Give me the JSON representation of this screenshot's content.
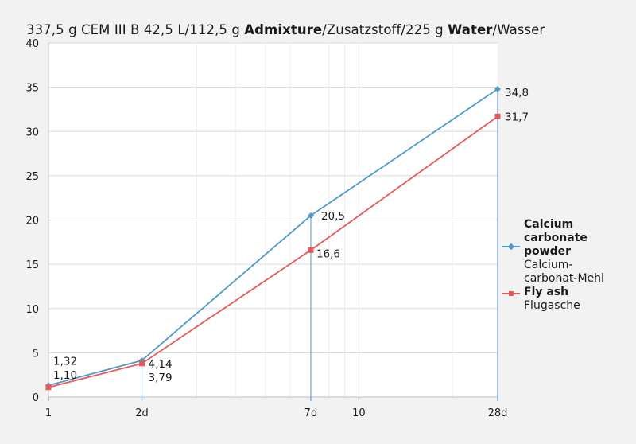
{
  "title": {
    "part1": "337,5 g CEM III B 42,5 L/112,5 g ",
    "bold1": "Admixture",
    "part2": "/Zusatzstoff/225 g ",
    "bold2": "Water",
    "part3": "/Wasser"
  },
  "colors": {
    "background": "#f2f2f2",
    "plot_background": "#ffffff",
    "grid": "#d9d9d9",
    "calcium_carbonate": "#4d9ac8",
    "fly_ash": "#e8575a",
    "drop_lines": "#6fa3cf"
  },
  "chart_data": {
    "type": "line",
    "x_scale": "log",
    "x": [
      1,
      2,
      7,
      28
    ],
    "xlim": [
      1,
      28
    ],
    "x_ticks": [
      {
        "value": 1,
        "label": "1"
      },
      {
        "value": 2,
        "label": "2d"
      },
      {
        "value": 7,
        "label": "7d"
      },
      {
        "value": 10,
        "label": "10"
      },
      {
        "value": 28,
        "label": "28d"
      }
    ],
    "ylim": [
      0,
      40
    ],
    "y_ticks": [
      "0",
      "5",
      "10",
      "15",
      "20",
      "25",
      "30",
      "35",
      "40"
    ],
    "grid": true,
    "legend_position": "right",
    "vertical_drop_lines_at": [
      2,
      7,
      28
    ],
    "series": [
      {
        "name": "Calcium carbonate powder",
        "name_de": "Calcium-carbonat-Mehl",
        "legend_name": "Calcium\ncarbonate powder",
        "legend_sub": "Calcium-\ncarbonat-Mehl",
        "marker": "diamond",
        "values": [
          1.32,
          4.14,
          20.5,
          34.8
        ],
        "labels": [
          "1,32",
          "4,14",
          "20,5",
          "34,8"
        ]
      },
      {
        "name": "Fly ash",
        "name_de": "Flugasche",
        "legend_name": "Fly ash",
        "legend_sub": "Flugasche",
        "marker": "square",
        "values": [
          1.1,
          3.79,
          16.6,
          31.7
        ],
        "labels": [
          "1,10",
          "3,79",
          "16,6",
          "31,7"
        ]
      }
    ]
  }
}
